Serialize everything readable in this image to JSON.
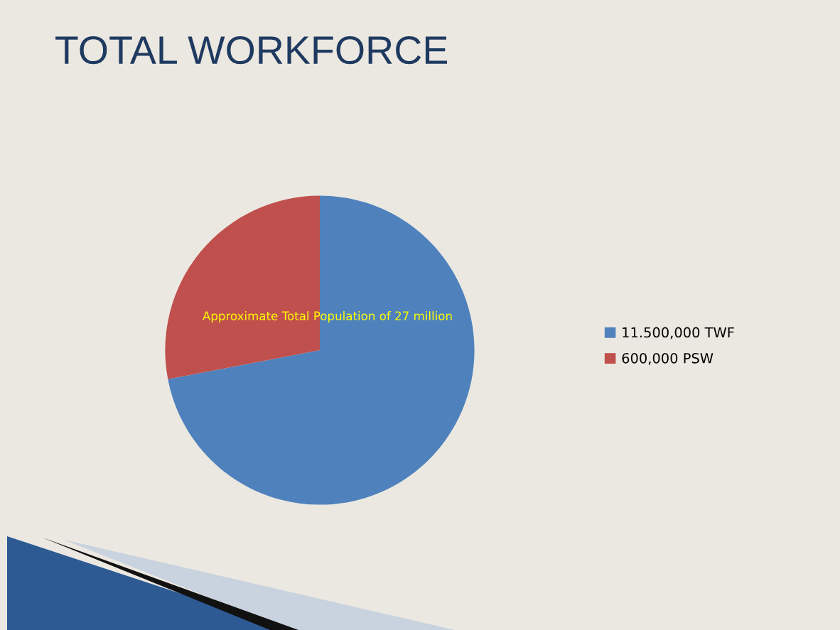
{
  "chart_data": {
    "type": "pie",
    "title": "TOTAL WORKFORCE",
    "categories": [
      "11.500,000 TWF",
      "600,000 PSW"
    ],
    "values": [
      72,
      28
    ],
    "colors": [
      "#4f81bd",
      "#c0504d"
    ],
    "annotations": [
      "Approximate Total Population of 27 million"
    ],
    "legend": "right"
  }
}
